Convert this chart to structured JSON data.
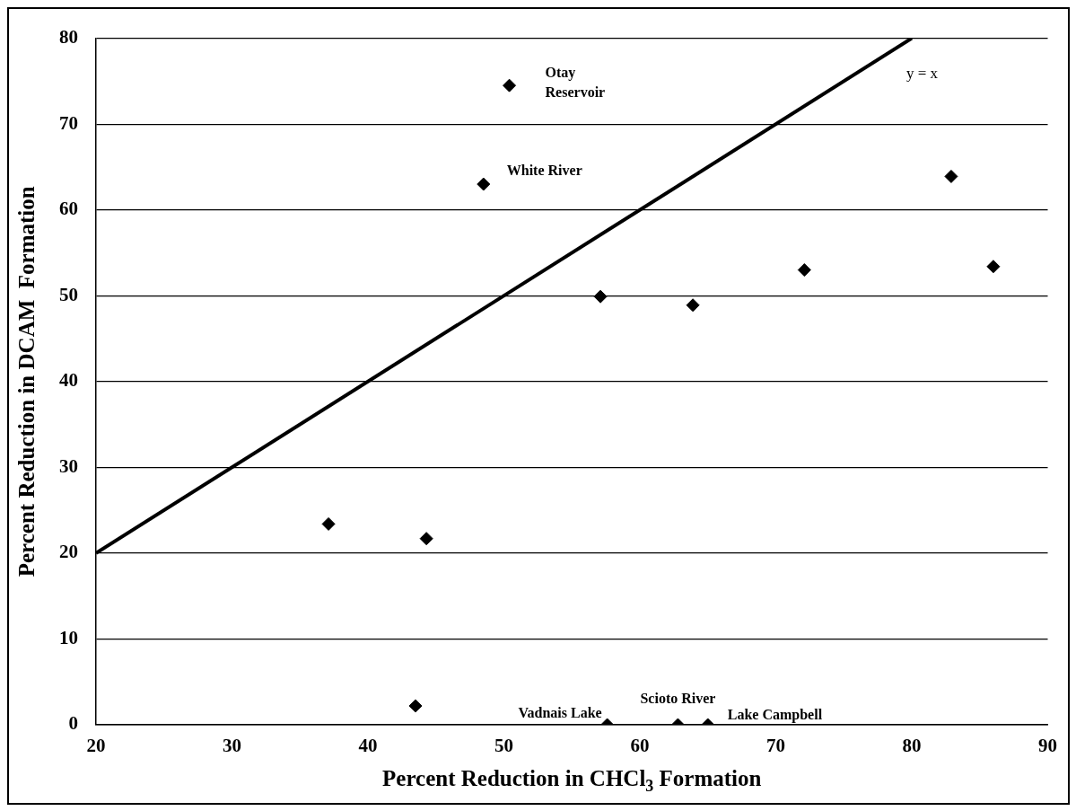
{
  "chart_data": {
    "type": "scatter",
    "xlabel": "Percent Reduction in CHCl$_{3}$ Formation",
    "ylabel": "Percent Reduction in DCAM  Formation",
    "xlim": [
      20,
      90
    ],
    "xticks": [
      20,
      30,
      40,
      50,
      60,
      70,
      80,
      90
    ],
    "ylim": [
      0,
      80
    ],
    "yticks": [
      0,
      10,
      20,
      30,
      40,
      50,
      60,
      70,
      80
    ],
    "grid": "y",
    "legend": false,
    "marker": "diamond",
    "series": [
      {
        "type": "scatter",
        "color": "#000000",
        "x": [
          37.1,
          44.3,
          43.5,
          50.4,
          48.5,
          82.9,
          86.0,
          72.1,
          57.1,
          63.9,
          57.6,
          62.8,
          65.0
        ],
        "values": [
          23.4,
          21.7,
          2.2,
          74.5,
          63.0,
          63.9,
          53.4,
          53.0,
          49.9,
          48.9,
          0,
          0,
          0
        ]
      },
      {
        "type": "line",
        "color": "#000000",
        "x": [
          20,
          80
        ],
        "values": [
          20,
          80
        ],
        "marker": "none",
        "line_style": "solid"
      }
    ],
    "annotations": [
      {
        "text": "Otay\nReservoir",
        "x": 50.4,
        "y": 74.5
      },
      {
        "text": "White River",
        "x": 48.5,
        "y": 63.0
      },
      {
        "text": "Vadnais Lake",
        "x": 57.6,
        "y": 0
      },
      {
        "text": "Scioto River",
        "x": 62.8,
        "y": 0
      },
      {
        "text": "Lake Campbell",
        "x": 65.0,
        "y": 0
      },
      "y = x"
    ]
  }
}
